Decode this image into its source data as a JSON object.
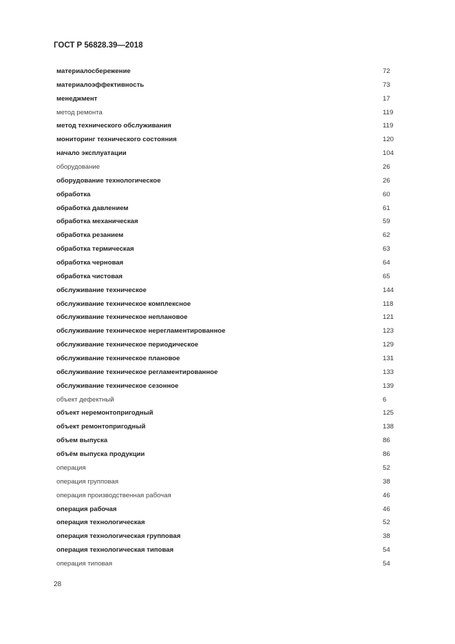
{
  "header": "ГОСТ Р 56828.39—2018",
  "entries": [
    {
      "term": "материалосбережение",
      "page": "72",
      "bold": true
    },
    {
      "term": "материалоэффективность",
      "page": "73",
      "bold": true
    },
    {
      "term": "менеджмент",
      "page": "17",
      "bold": true
    },
    {
      "term": "метод ремонта",
      "page": "119",
      "bold": false
    },
    {
      "term": "метод технического обслуживания",
      "page": "119",
      "bold": true
    },
    {
      "term": "мониторинг технического состояния",
      "page": "120",
      "bold": true
    },
    {
      "term": "начало эксплуатации",
      "page": "104",
      "bold": true
    },
    {
      "term": "оборудование",
      "page": "26",
      "bold": false
    },
    {
      "term": "оборудование технологическое",
      "page": "26",
      "bold": true
    },
    {
      "term": "обработка",
      "page": "60",
      "bold": true
    },
    {
      "term": "обработка давлением",
      "page": "61",
      "bold": true
    },
    {
      "term": "обработка механическая",
      "page": "59",
      "bold": true
    },
    {
      "term": "обработка резанием",
      "page": "62",
      "bold": true
    },
    {
      "term": "обработка термическая",
      "page": "63",
      "bold": true
    },
    {
      "term": "обработка черновая",
      "page": "64",
      "bold": true
    },
    {
      "term": "обработка чистовая",
      "page": "65",
      "bold": true
    },
    {
      "term": "обслуживание техническое",
      "page": "144",
      "bold": true
    },
    {
      "term": "обслуживание техническое комплексное",
      "page": "118",
      "bold": true
    },
    {
      "term": "обслуживание техническое неплановое",
      "page": "121",
      "bold": true
    },
    {
      "term": "обслуживание техническое нерегламентированное",
      "page": "123",
      "bold": true
    },
    {
      "term": "обслуживание техническое периодическое",
      "page": "129",
      "bold": true
    },
    {
      "term": "обслуживание техническое плановое",
      "page": "131",
      "bold": true
    },
    {
      "term": "обслуживание техническое регламентированное",
      "page": "133",
      "bold": true
    },
    {
      "term": "обслуживание техническое сезонное",
      "page": "139",
      "bold": true
    },
    {
      "term": "объект дефектный",
      "page": "6",
      "bold": false
    },
    {
      "term": "объект неремонтопригодный",
      "page": "125",
      "bold": true
    },
    {
      "term": "объект ремонтопригодный",
      "page": "138",
      "bold": true
    },
    {
      "term": "объем выпуска",
      "page": "86",
      "bold": true
    },
    {
      "term": "объём выпуска продукции",
      "page": "86",
      "bold": true
    },
    {
      "term": "операция",
      "page": "52",
      "bold": false
    },
    {
      "term": "операция групповая",
      "page": "38",
      "bold": false
    },
    {
      "term": "операция производственная рабочая",
      "page": "46",
      "bold": false
    },
    {
      "term": "операция рабочая",
      "page": "46",
      "bold": true
    },
    {
      "term": "операция технологическая",
      "page": "52",
      "bold": true
    },
    {
      "term": "операция технологическая групповая",
      "page": "38",
      "bold": true
    },
    {
      "term": "операция технологическая типовая",
      "page": "54",
      "bold": true
    },
    {
      "term": "операция типовая",
      "page": "54",
      "bold": false
    }
  ],
  "page_number": "28"
}
